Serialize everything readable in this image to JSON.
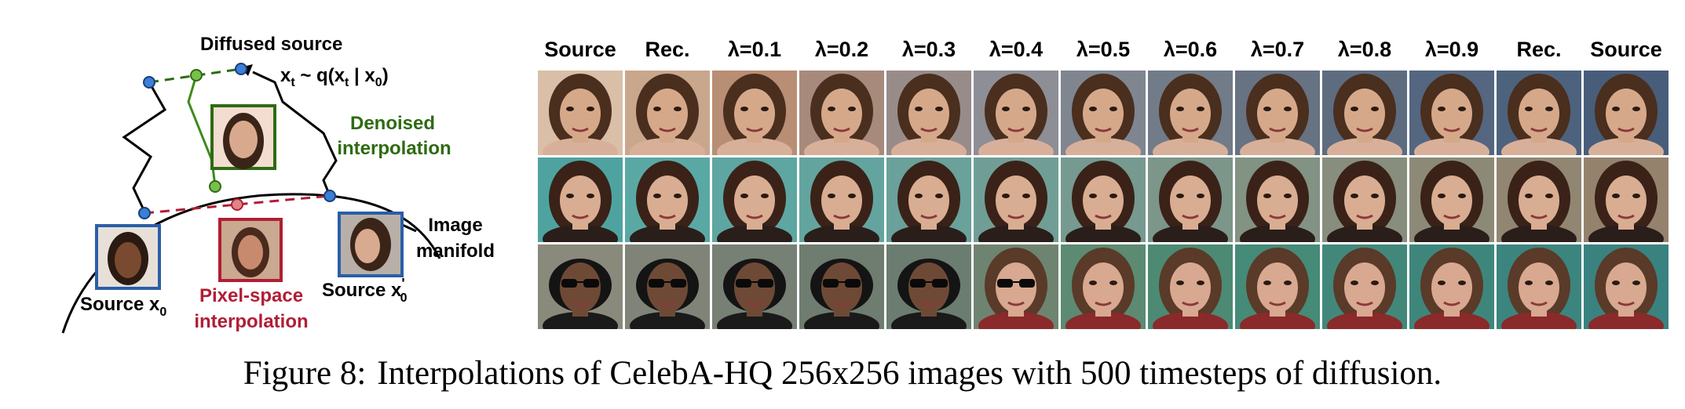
{
  "diagram": {
    "diffused_source": "Diffused source",
    "xt_eq_main": "x",
    "xt_eq_sub_t": "t",
    "xt_eq_mid": " ~ q(x",
    "xt_eq_sub_t2": "t",
    "xt_eq_bar": " | x",
    "xt_eq_sub_0": "0",
    "xt_eq_close": ")",
    "denoised_line1": "Denoised",
    "denoised_line2": "interpolation",
    "image_line1": "Image",
    "image_line2": "manifold",
    "pixel_line1": "Pixel-space",
    "pixel_line2": "interpolation",
    "source_x0_text": "Source x",
    "source_x0_sub": "0",
    "source_x0p_text": "Source x",
    "source_x0p_sup": "'",
    "source_x0p_sub": "0",
    "colors": {
      "green": "#2e6b12",
      "red": "#b01e35",
      "blue": "#2a5ea8",
      "node": "#3b7fd6"
    }
  },
  "grid": {
    "columns": [
      "Source",
      "Rec.",
      "λ=0.1",
      "λ=0.2",
      "λ=0.3",
      "λ=0.4",
      "λ=0.5",
      "λ=0.6",
      "λ=0.7",
      "λ=0.8",
      "λ=0.9",
      "Rec.",
      "Source"
    ],
    "rows": 3
  },
  "caption": {
    "label": "Figure 8:",
    "text": "Interpolations of CelebA-HQ 256x256 images with 500 timesteps of diffusion."
  }
}
